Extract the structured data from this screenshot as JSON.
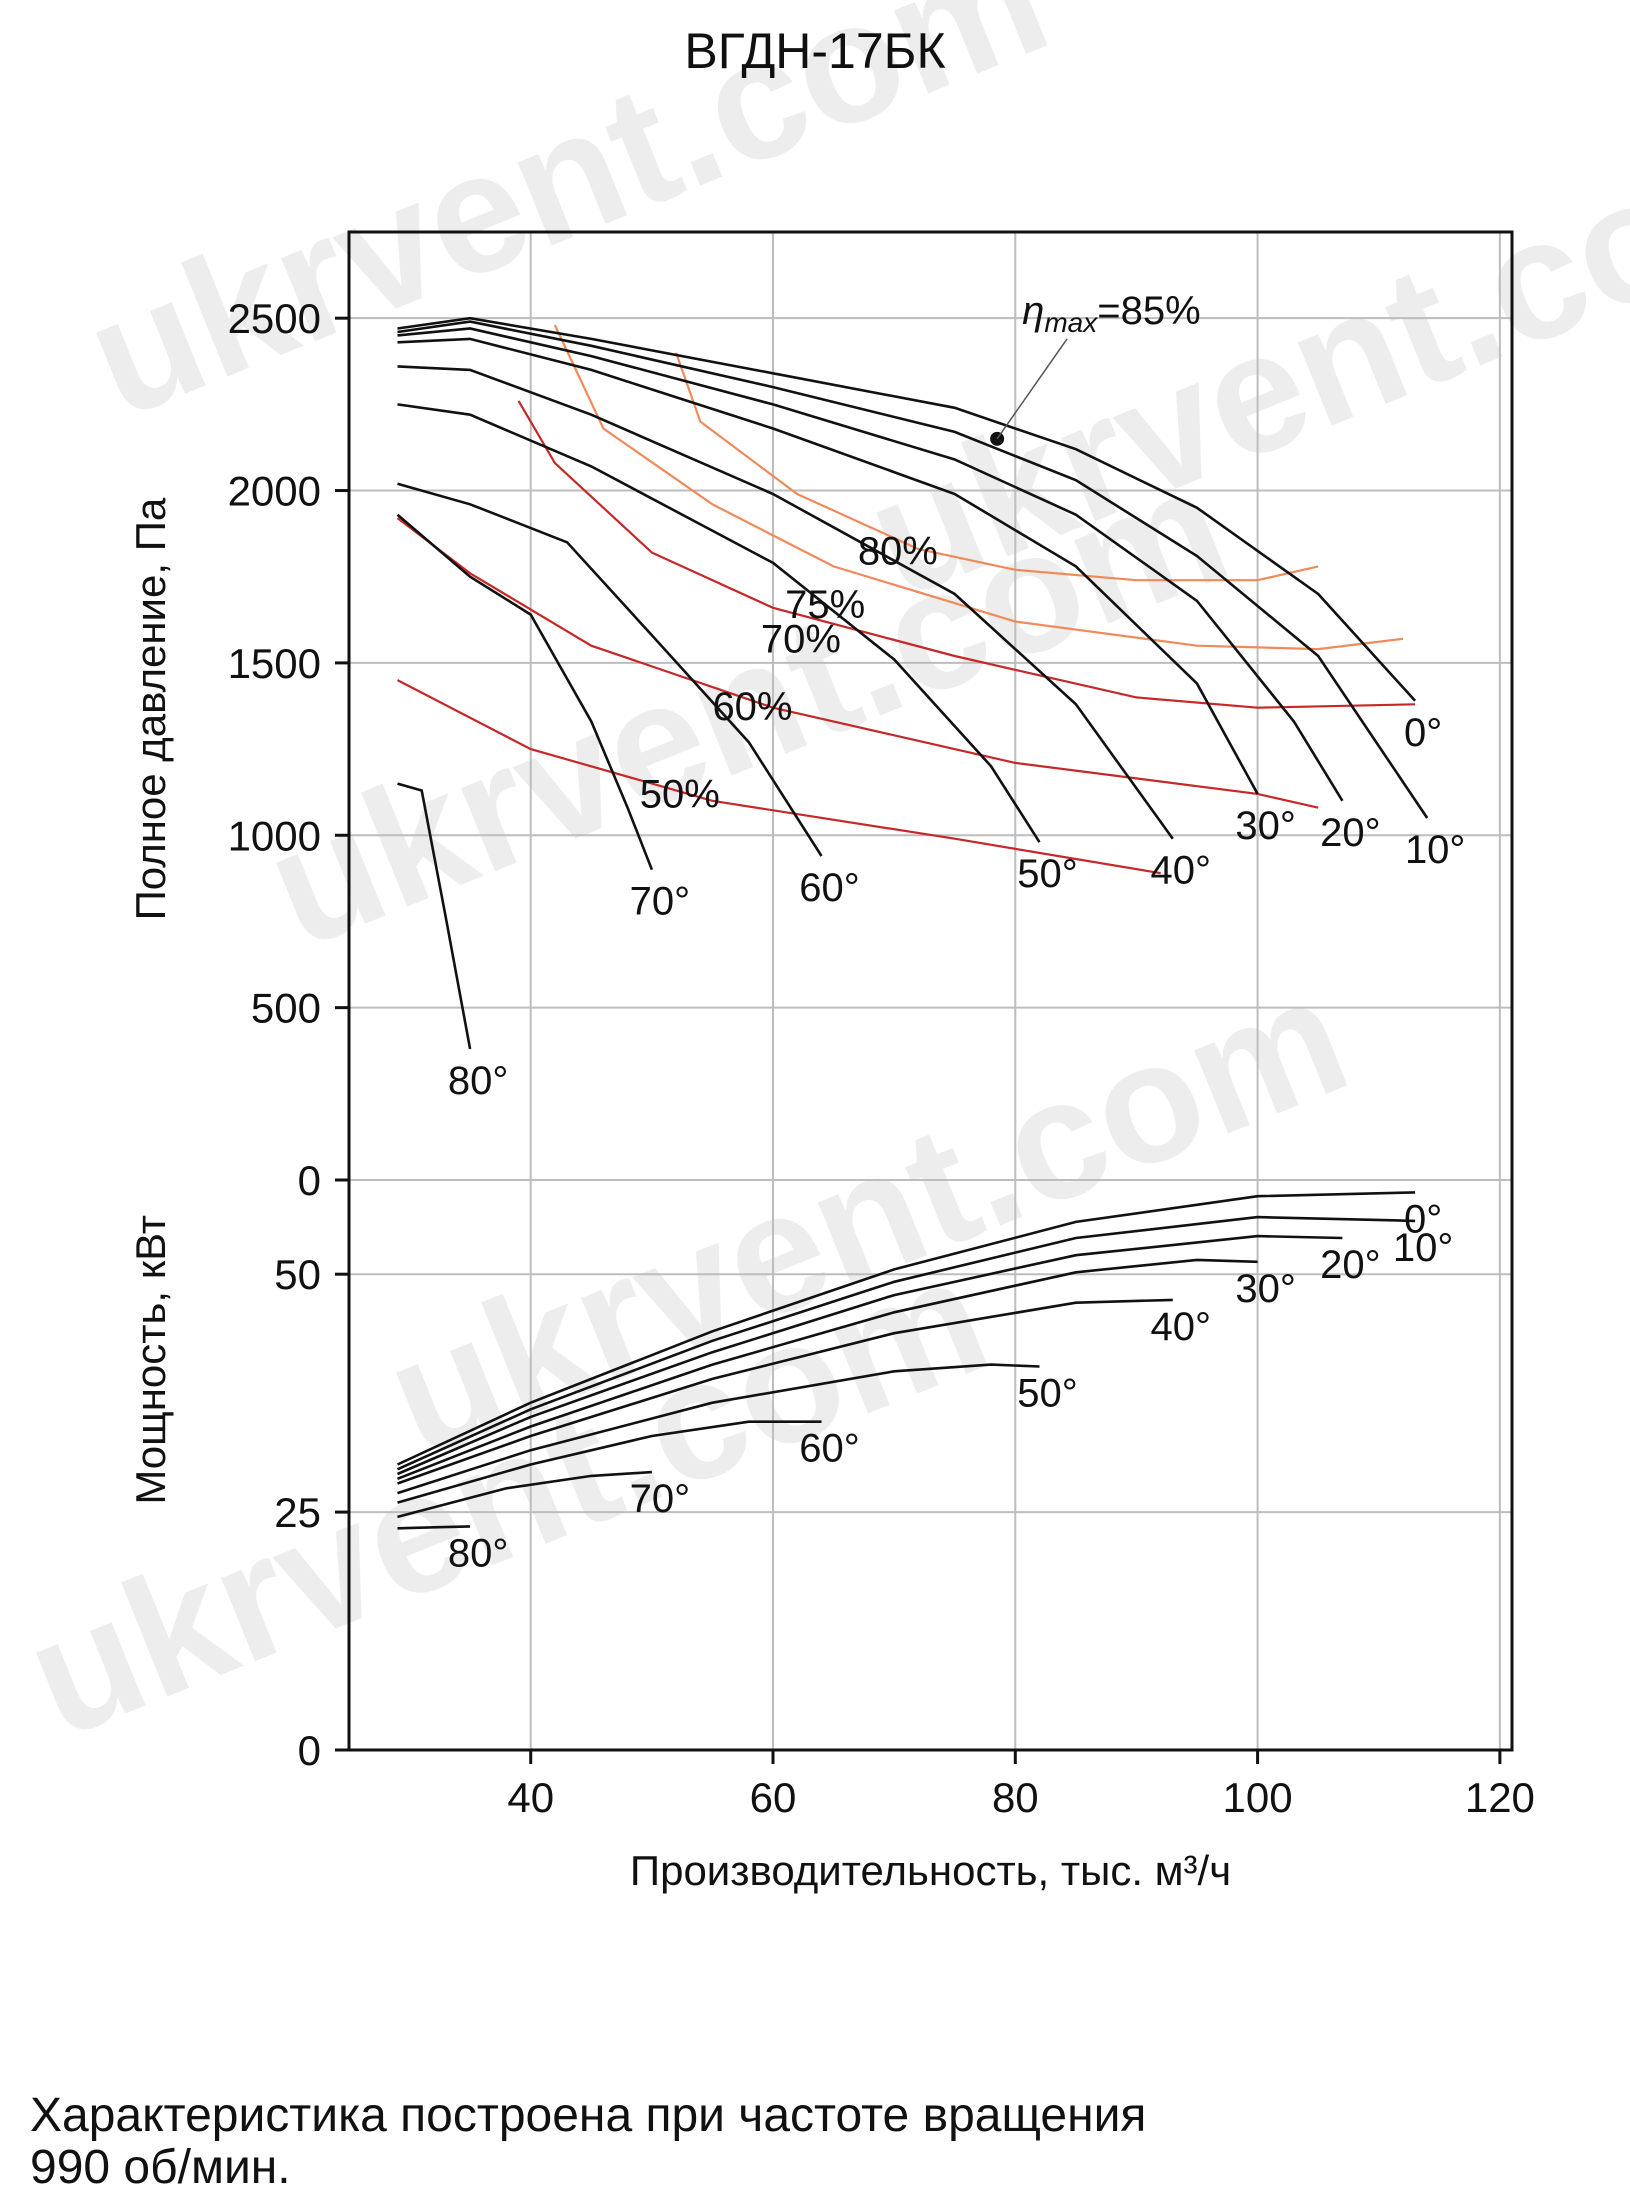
{
  "title": "ВГДН-17БК",
  "note_line1": "Характеристика построена при частоте вращения",
  "note_line2": "990 об/мин.",
  "watermark_text": "ukrvent.com",
  "colors": {
    "blade": "#111111",
    "eff_outer": "#f08a5a",
    "eff_inner": "#c62828",
    "grid": "#bdbdbd"
  },
  "chart_data": {
    "type": "line",
    "xlabel": "Производительность, тыс. м³/ч",
    "xlim": [
      25,
      121
    ],
    "xticks": [
      40,
      60,
      80,
      100,
      120
    ],
    "pressure_panel": {
      "ylabel": "Полное давление, Па",
      "ylim": [
        0,
        2750
      ],
      "yticks": [
        0,
        500,
        1000,
        1500,
        2000,
        2500
      ],
      "blade_curves": [
        {
          "name": "0°",
          "label": "0°",
          "points": [
            [
              29,
              2470
            ],
            [
              35,
              2500
            ],
            [
              45,
              2440
            ],
            [
              60,
              2340
            ],
            [
              75,
              2240
            ],
            [
              85,
              2120
            ],
            [
              95,
              1950
            ],
            [
              105,
              1700
            ],
            [
              113,
              1390
            ]
          ]
        },
        {
          "name": "10°",
          "label": "10°",
          "points": [
            [
              29,
              2460
            ],
            [
              35,
              2490
            ],
            [
              45,
              2420
            ],
            [
              60,
              2300
            ],
            [
              75,
              2170
            ],
            [
              85,
              2030
            ],
            [
              95,
              1810
            ],
            [
              105,
              1520
            ],
            [
              114,
              1050
            ]
          ]
        },
        {
          "name": "20°",
          "label": "20°",
          "points": [
            [
              29,
              2450
            ],
            [
              35,
              2470
            ],
            [
              45,
              2390
            ],
            [
              60,
              2250
            ],
            [
              75,
              2090
            ],
            [
              85,
              1930
            ],
            [
              95,
              1680
            ],
            [
              103,
              1330
            ],
            [
              107,
              1100
            ]
          ]
        },
        {
          "name": "30°",
          "label": "30°",
          "points": [
            [
              29,
              2430
            ],
            [
              35,
              2440
            ],
            [
              45,
              2350
            ],
            [
              60,
              2180
            ],
            [
              75,
              1990
            ],
            [
              85,
              1780
            ],
            [
              95,
              1440
            ],
            [
              100,
              1120
            ]
          ]
        },
        {
          "name": "40°",
          "label": "40°",
          "points": [
            [
              29,
              2360
            ],
            [
              35,
              2350
            ],
            [
              45,
              2220
            ],
            [
              60,
              1990
            ],
            [
              75,
              1700
            ],
            [
              85,
              1380
            ],
            [
              93,
              990
            ]
          ]
        },
        {
          "name": "50°",
          "label": "50°",
          "points": [
            [
              29,
              2250
            ],
            [
              35,
              2220
            ],
            [
              45,
              2070
            ],
            [
              60,
              1790
            ],
            [
              70,
              1510
            ],
            [
              78,
              1200
            ],
            [
              82,
              980
            ]
          ]
        },
        {
          "name": "60°",
          "label": "60°",
          "points": [
            [
              29,
              2020
            ],
            [
              35,
              1960
            ],
            [
              43,
              1850
            ],
            [
              50,
              1580
            ],
            [
              58,
              1270
            ],
            [
              64,
              940
            ]
          ]
        },
        {
          "name": "70°",
          "label": "70°",
          "points": [
            [
              29,
              1930
            ],
            [
              35,
              1750
            ],
            [
              40,
              1640
            ],
            [
              45,
              1330
            ],
            [
              48,
              1080
            ],
            [
              50,
              900
            ]
          ]
        },
        {
          "name": "80°",
          "label": "80°",
          "points": [
            [
              29,
              1150
            ],
            [
              31,
              1130
            ],
            [
              33,
              760
            ],
            [
              35,
              380
            ]
          ]
        }
      ],
      "efficiency_curves": [
        {
          "name": "50%",
          "label": "50%",
          "points": [
            [
              29,
              1450
            ],
            [
              40,
              1250
            ],
            [
              55,
              1100
            ],
            [
              75,
              990
            ],
            [
              92,
              890
            ]
          ]
        },
        {
          "name": "60%",
          "label": "60%",
          "points": [
            [
              29,
              1920
            ],
            [
              35,
              1760
            ],
            [
              45,
              1550
            ],
            [
              60,
              1370
            ],
            [
              80,
              1210
            ],
            [
              100,
              1120
            ],
            [
              105,
              1080
            ]
          ]
        },
        {
          "name": "70%",
          "label": "70%",
          "points": [
            [
              39,
              2260
            ],
            [
              42,
              2080
            ],
            [
              50,
              1820
            ],
            [
              60,
              1660
            ],
            [
              75,
              1520
            ],
            [
              90,
              1400
            ],
            [
              100,
              1370
            ],
            [
              113,
              1380
            ]
          ]
        },
        {
          "name": "75%",
          "label": "75%",
          "points": [
            [
              42,
              2480
            ],
            [
              46,
              2180
            ],
            [
              55,
              1960
            ],
            [
              65,
              1780
            ],
            [
              80,
              1620
            ],
            [
              95,
              1550
            ],
            [
              105,
              1540
            ],
            [
              112,
              1570
            ]
          ]
        },
        {
          "name": "80%",
          "label": "80%",
          "points": [
            [
              52,
              2400
            ],
            [
              54,
              2200
            ],
            [
              62,
              1990
            ],
            [
              72,
              1830
            ],
            [
              80,
              1770
            ],
            [
              90,
              1740
            ],
            [
              100,
              1740
            ],
            [
              105,
              1780
            ]
          ]
        }
      ],
      "optimum_point": {
        "x": 78.5,
        "y": 2150,
        "label": "η",
        "label_sub": "max",
        "label_value": "=85%"
      }
    },
    "power_panel": {
      "ylabel": "Мощность, кВт",
      "ylim": [
        0,
        62
      ],
      "yticks": [
        0,
        25,
        50
      ],
      "curves": [
        {
          "name": "0°",
          "label": "0°",
          "points": [
            [
              29,
              30
            ],
            [
              40,
              36.5
            ],
            [
              55,
              44
            ],
            [
              70,
              50.5
            ],
            [
              85,
              55.5
            ],
            [
              100,
              58.2
            ],
            [
              113,
              58.6
            ]
          ]
        },
        {
          "name": "10°",
          "label": "10°",
          "points": [
            [
              29,
              29.5
            ],
            [
              40,
              35.8
            ],
            [
              55,
              43
            ],
            [
              70,
              49.2
            ],
            [
              85,
              53.8
            ],
            [
              100,
              56
            ],
            [
              113,
              55.6
            ]
          ]
        },
        {
          "name": "20°",
          "label": "20°",
          "points": [
            [
              29,
              29
            ],
            [
              40,
              35
            ],
            [
              55,
              41.8
            ],
            [
              70,
              47.8
            ],
            [
              85,
              52
            ],
            [
              100,
              54
            ],
            [
              107,
              53.8
            ]
          ]
        },
        {
          "name": "30°",
          "label": "30°",
          "points": [
            [
              29,
              28.5
            ],
            [
              40,
              34
            ],
            [
              55,
              40.5
            ],
            [
              70,
              46
            ],
            [
              85,
              50.2
            ],
            [
              95,
              51.5
            ],
            [
              100,
              51.3
            ]
          ]
        },
        {
          "name": "40°",
          "label": "40°",
          "points": [
            [
              29,
              28
            ],
            [
              40,
              33
            ],
            [
              55,
              39
            ],
            [
              70,
              43.8
            ],
            [
              85,
              47
            ],
            [
              93,
              47.3
            ]
          ]
        },
        {
          "name": "50°",
          "label": "50°",
          "points": [
            [
              29,
              27
            ],
            [
              40,
              31.5
            ],
            [
              55,
              36.5
            ],
            [
              70,
              39.8
            ],
            [
              78,
              40.5
            ],
            [
              82,
              40.3
            ]
          ]
        },
        {
          "name": "60°",
          "label": "60°",
          "points": [
            [
              29,
              26
            ],
            [
              40,
              30
            ],
            [
              50,
              33
            ],
            [
              58,
              34.5
            ],
            [
              64,
              34.5
            ]
          ]
        },
        {
          "name": "70°",
          "label": "70°",
          "points": [
            [
              29,
              24.5
            ],
            [
              38,
              27.5
            ],
            [
              45,
              28.8
            ],
            [
              50,
              29.2
            ]
          ]
        },
        {
          "name": "80°",
          "label": "80°",
          "points": [
            [
              29,
              23.3
            ],
            [
              32,
              23.4
            ],
            [
              35,
              23.5
            ]
          ]
        }
      ]
    }
  }
}
